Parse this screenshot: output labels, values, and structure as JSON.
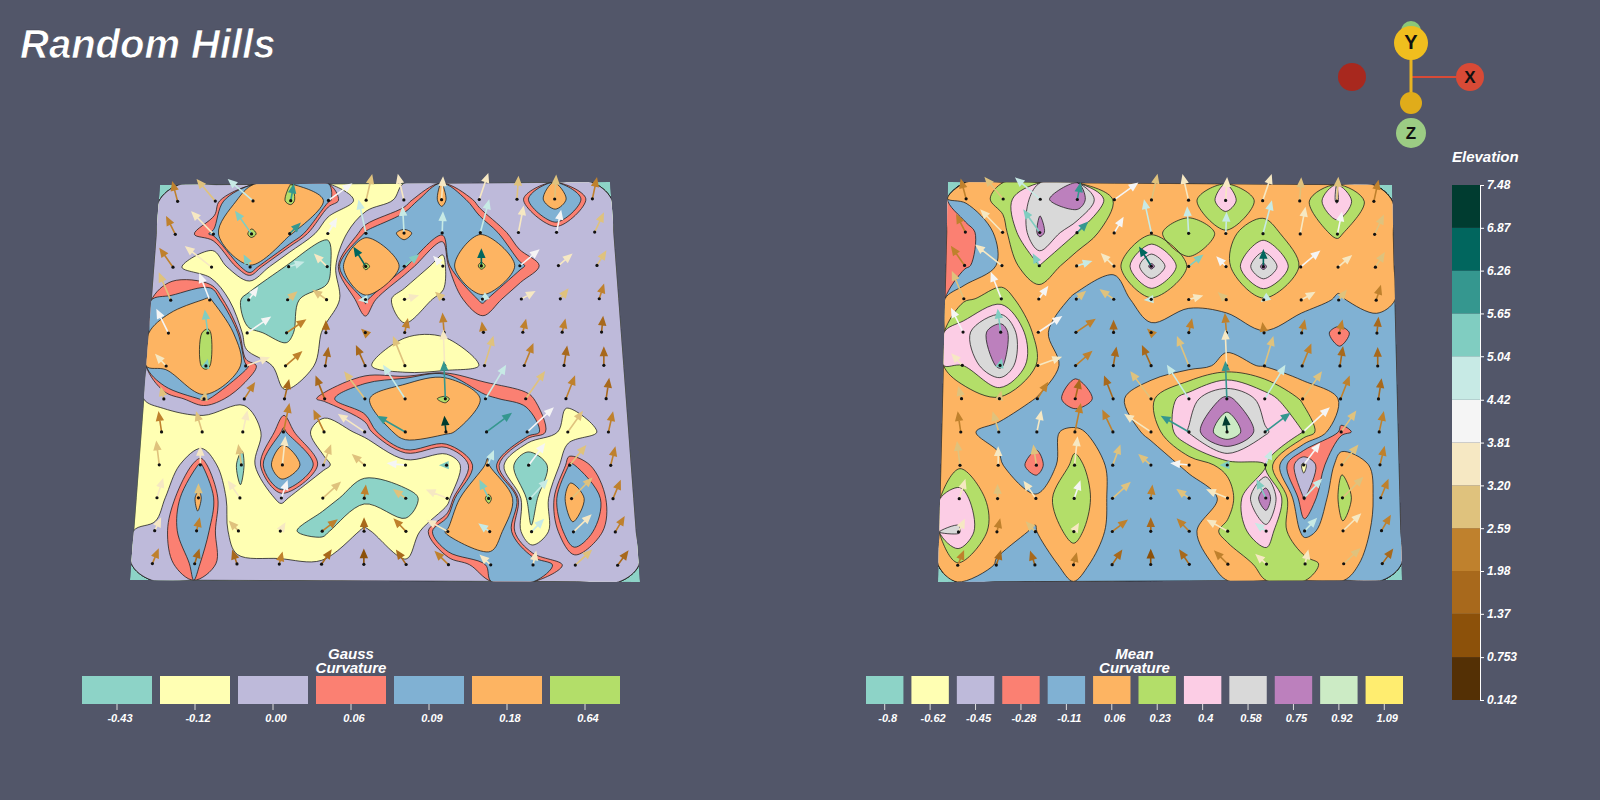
{
  "title": "Random Hills",
  "axes": [
    "X",
    "Y",
    "Z"
  ],
  "chart_data": [
    {
      "type": "contour",
      "title": "Gauss Curvature",
      "levels": [
        -0.43,
        -0.12,
        {
          "value": 0,
          "label": "0.00"
        },
        0.06,
        0.09,
        0.18,
        0.64
      ],
      "colors": [
        "#8dd3c7",
        "#ffffb3",
        "#bebada",
        "#fb8072",
        "#80b1d3",
        "#fdb462",
        "#b3de69"
      ],
      "cells": [
        [
          0.02,
          0.03,
          0.3,
          0.7,
          0.1,
          -0.05,
          0.02,
          0.2,
          0.03,
          0.02,
          0.25,
          0.02
        ],
        [
          0.02,
          0.1,
          0.7,
          0.2,
          -0.1,
          0.1,
          0.2,
          0.1,
          0.15,
          0.02,
          0.02,
          0.02
        ],
        [
          0.03,
          -0.1,
          0.15,
          -0.15,
          -0.2,
          0.7,
          0.1,
          -0.05,
          0.7,
          0.1,
          0.02,
          0.02
        ],
        [
          0.1,
          0.2,
          -0.2,
          -0.15,
          -0.05,
          0.1,
          -0.05,
          0.02,
          0.1,
          0.02,
          0.02,
          0.02
        ],
        [
          0.3,
          0.7,
          -0.1,
          -0.15,
          0.02,
          0.02,
          0.02,
          0.02,
          0.02,
          0.02,
          0.02,
          0.02
        ],
        [
          0.2,
          0.7,
          0.1,
          -0.05,
          0.02,
          0.02,
          -0.1,
          -0.12,
          0.02,
          0.02,
          0.02,
          0.02
        ],
        [
          0.02,
          0.1,
          0.02,
          0.02,
          0.07,
          0.15,
          0.4,
          0.7,
          0.1,
          0.07,
          0.02,
          0.02
        ],
        [
          -0.05,
          -0.1,
          -0.08,
          0.1,
          -0.05,
          0.02,
          0.25,
          0.2,
          0.1,
          0.15,
          -0.05,
          0.02
        ],
        [
          -0.1,
          0.1,
          -0.15,
          0.3,
          0.02,
          -0.1,
          -0.05,
          -0.1,
          0.2,
          -0.3,
          0.1,
          0.02
        ],
        [
          -0.05,
          0.2,
          -0.1,
          0.02,
          -0.1,
          -0.15,
          -0.15,
          -0.05,
          0.7,
          -0.2,
          0.25,
          0.02
        ],
        [
          0.02,
          0.15,
          -0.05,
          -0.1,
          -0.15,
          0.02,
          -0.1,
          0.2,
          0.3,
          -0.1,
          0.15,
          0.02
        ],
        [
          0.02,
          0.1,
          0.02,
          0.02,
          0.02,
          0.02,
          0.02,
          0.02,
          0.1,
          0.15,
          0.02,
          0.02
        ]
      ]
    },
    {
      "type": "contour",
      "title": "Mean Curvature",
      "levels": [
        -0.8,
        -0.62,
        -0.45,
        -0.28,
        -0.11,
        0.06,
        0.23,
        0.4,
        0.58,
        0.75,
        0.92,
        1.09
      ],
      "colors": [
        "#8dd3c7",
        "#ffffb3",
        "#bebada",
        "#fb8072",
        "#80b1d3",
        "#fdb462",
        "#b3de69",
        "#fccde5",
        "#d9d9d9",
        "#bc80bd",
        "#ccebc5",
        "#ffed6f"
      ],
      "cells": [
        [
          0.1,
          0.3,
          0.7,
          0.9,
          0.2,
          0.1,
          0.15,
          0.5,
          0.15,
          0.1,
          0.6,
          0.1
        ],
        [
          -0.2,
          0.15,
          0.8,
          0.4,
          0.1,
          0.2,
          0.3,
          0.2,
          0.3,
          0.15,
          0.25,
          0.1
        ],
        [
          -0.15,
          0.1,
          0.4,
          0.1,
          0.1,
          0.8,
          0.2,
          0.15,
          0.8,
          0.2,
          0.1,
          0.1
        ],
        [
          0.2,
          0.3,
          0.1,
          0.05,
          -0.05,
          0.2,
          0.1,
          0.1,
          0.2,
          0.1,
          0.05,
          0.1
        ],
        [
          0.5,
          0.9,
          0.1,
          -0.05,
          0.0,
          0.0,
          -0.05,
          0.0,
          0.05,
          0.0,
          -0.15,
          0.0
        ],
        [
          0.4,
          0.8,
          0.2,
          -0.05,
          -0.1,
          -0.05,
          0.0,
          0.1,
          0.05,
          -0.05,
          -0.05,
          0.0
        ],
        [
          0.1,
          0.2,
          0.05,
          -0.2,
          0.0,
          0.2,
          0.5,
          0.8,
          0.5,
          0.2,
          0.05,
          0.0
        ],
        [
          0.1,
          0.0,
          0.0,
          0.1,
          -0.05,
          0.1,
          0.6,
          1.1,
          0.6,
          0.4,
          -0.15,
          0.0
        ],
        [
          0.2,
          0.1,
          -0.2,
          0.3,
          0.0,
          -0.05,
          0.1,
          0.3,
          0.4,
          -0.5,
          0.2,
          0.0
        ],
        [
          0.5,
          0.1,
          0.1,
          0.4,
          0.0,
          -0.1,
          -0.05,
          0.1,
          0.9,
          -0.3,
          0.3,
          0.0
        ],
        [
          0.6,
          0.1,
          0.05,
          0.3,
          0.0,
          -0.05,
          0.0,
          0.3,
          0.5,
          0.0,
          0.2,
          0.0
        ],
        [
          0.2,
          0.05,
          0.0,
          0.1,
          0.0,
          0.0,
          0.0,
          0.1,
          0.3,
          0.3,
          0.1,
          0.0
        ]
      ]
    },
    {
      "type": "colorbar",
      "title": "Elevation",
      "ylim": [
        0.142,
        7.48
      ],
      "yticks": [
        0.142,
        0.753,
        1.37,
        1.98,
        2.59,
        {
          "value": 3.2,
          "label": "3.20"
        },
        3.81,
        4.42,
        5.04,
        5.65,
        6.26,
        6.87,
        7.48
      ],
      "colors": [
        "#543005",
        "#8c510a",
        "#a8691c",
        "#bf812d",
        "#dfc27d",
        "#f6e8c3",
        "#f5f5f5",
        "#c7eae5",
        "#80cdc1",
        "#35978f",
        "#01665e",
        "#003c30"
      ],
      "cells": [
        [
          2.1,
          2.8,
          4.6,
          6.2,
          4.2,
          3.0,
          3.4,
          3.8,
          3.2,
          2.6,
          3.0,
          2.4
        ],
        [
          2.4,
          3.6,
          5.4,
          5.8,
          4.0,
          4.6,
          5.0,
          4.8,
          4.9,
          3.6,
          4.2,
          3.0
        ],
        [
          2.0,
          3.8,
          5.6,
          4.6,
          3.6,
          6.3,
          5.2,
          4.4,
          6.4,
          4.4,
          3.8,
          2.6
        ],
        [
          2.6,
          4.2,
          4.0,
          3.0,
          2.8,
          4.8,
          3.6,
          3.0,
          4.6,
          3.2,
          2.8,
          2.2
        ],
        [
          4.0,
          5.6,
          4.4,
          2.4,
          1.8,
          2.4,
          2.2,
          2.0,
          2.4,
          2.2,
          2.0,
          1.8
        ],
        [
          3.8,
          5.2,
          3.6,
          2.0,
          1.4,
          1.6,
          2.6,
          3.2,
          2.8,
          2.0,
          1.6,
          1.6
        ],
        [
          2.6,
          3.0,
          2.4,
          1.6,
          1.8,
          2.8,
          4.6,
          5.8,
          4.8,
          3.0,
          2.2,
          1.8
        ],
        [
          2.4,
          2.8,
          3.2,
          2.2,
          2.4,
          3.6,
          6.0,
          7.4,
          6.2,
          4.0,
          2.6,
          2.0
        ],
        [
          3.0,
          3.4,
          3.0,
          3.8,
          2.6,
          2.8,
          4.2,
          5.2,
          5.0,
          4.4,
          2.8,
          2.2
        ],
        [
          3.6,
          2.8,
          3.6,
          4.4,
          2.8,
          2.0,
          2.6,
          3.6,
          5.4,
          4.8,
          3.0,
          2.0
        ],
        [
          3.2,
          2.4,
          2.8,
          3.6,
          2.2,
          1.6,
          2.2,
          3.2,
          5.0,
          4.6,
          3.4,
          2.2
        ],
        [
          2.4,
          1.6,
          1.8,
          2.2,
          1.4,
          0.9,
          1.4,
          2.2,
          3.2,
          3.6,
          2.8,
          1.4
        ]
      ]
    }
  ]
}
